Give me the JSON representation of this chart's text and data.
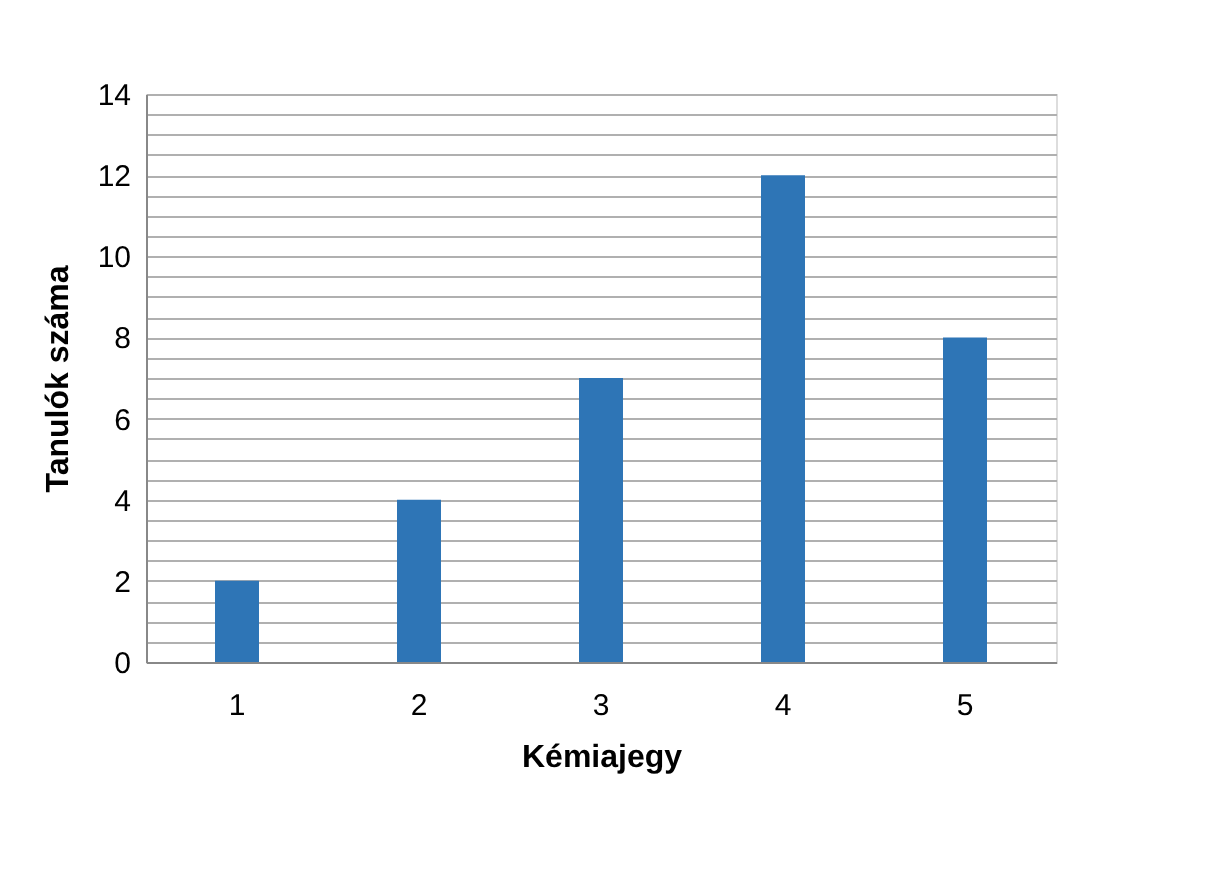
{
  "chart_data": {
    "type": "bar",
    "xlabel": "Kémiajegy",
    "ylabel": "Tanulók száma",
    "categories": [
      "1",
      "2",
      "3",
      "4",
      "5"
    ],
    "values": [
      2,
      4,
      7,
      12,
      8
    ],
    "color": "#2e75b6",
    "ylim": [
      0,
      14
    ],
    "yticks": [
      0,
      {
        "value": 0.5,
        "label": null
      },
      {
        "value": 1,
        "label": null
      },
      {
        "value": 1.5,
        "label": null
      },
      2,
      {
        "value": 2.5,
        "label": null
      },
      {
        "value": 3,
        "label": null
      },
      {
        "value": 3.5,
        "label": null
      },
      4,
      {
        "value": 4.5,
        "label": null
      },
      {
        "value": 5,
        "label": null
      },
      {
        "value": 5.5,
        "label": null
      },
      6,
      {
        "value": 6.5,
        "label": null
      },
      {
        "value": 7,
        "label": null
      },
      {
        "value": 7.5,
        "label": null
      },
      8,
      {
        "value": 8.5,
        "label": null
      },
      {
        "value": 9,
        "label": null
      },
      {
        "value": 9.5,
        "label": null
      },
      10,
      {
        "value": 10.5,
        "label": null
      },
      {
        "value": 11,
        "label": null
      },
      {
        "value": 11.5,
        "label": null
      },
      12,
      {
        "value": 12.5,
        "label": null
      },
      {
        "value": 13,
        "label": null
      },
      {
        "value": 13.5,
        "label": null
      },
      14
    ],
    "grid": "y"
  }
}
